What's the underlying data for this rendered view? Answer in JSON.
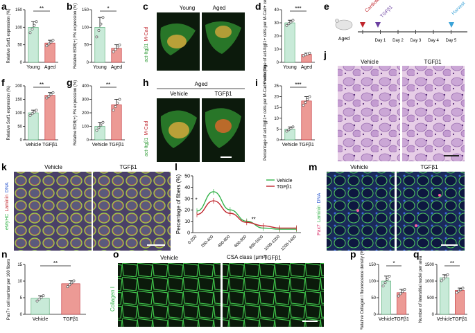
{
  "panel_letters": [
    "a",
    "b",
    "c",
    "d",
    "e",
    "f",
    "g",
    "h",
    "i",
    "j",
    "k",
    "l",
    "m",
    "n",
    "o",
    "p",
    "q"
  ],
  "colors": {
    "young": "#c8ead8",
    "aged": "#ec9a95",
    "vehicle": "#c8ead8",
    "tgfb1": "#ec9a95",
    "green": "#34b34a",
    "red": "#c0262d"
  },
  "micro": {
    "young": "Young",
    "aged": "Aged",
    "vehicle": "Vehicle",
    "tgfb1": "TGFβ1",
    "c_stain_green": "act-Itgβ1",
    "c_stain_red": "M-Cad",
    "k_stain": [
      "eMyHC",
      "Laminin",
      "DNA"
    ],
    "m_stain": [
      "Pax7",
      "Laminin",
      "DNA"
    ],
    "o_stain": "Collagen I"
  },
  "timeline": {
    "aged_label": "Aged",
    "events": [
      "Cardiotoxin",
      "TGFβ1",
      "Harvest"
    ],
    "days": [
      "Day 1",
      "Day 2",
      "Day 3",
      "Day 4",
      "Day 5"
    ]
  },
  "chart_data": [
    {
      "panel": "a",
      "type": "bar",
      "categories": [
        "Young",
        "Aged"
      ],
      "values": [
        100,
        55
      ],
      "errors": [
        16,
        8
      ],
      "ylabel": "Relative Ssrf1 expression (%)",
      "ylim": [
        0,
        150
      ],
      "yticks": [
        0,
        50,
        100,
        150
      ],
      "sig": "**"
    },
    {
      "panel": "b",
      "type": "bar",
      "categories": [
        "Young",
        "Aged"
      ],
      "values": [
        100,
        40
      ],
      "errors": [
        28,
        10
      ],
      "ylabel": "Relative EDB(+) FN expression (%)",
      "ylim": [
        0,
        150
      ],
      "yticks": [
        0,
        50,
        100,
        150
      ],
      "sig": "*"
    },
    {
      "panel": "d",
      "type": "bar",
      "categories": [
        "Young",
        "Aged"
      ],
      "values": [
        30,
        6
      ],
      "errors": [
        2,
        1
      ],
      "ylabel": "Percentage of act-Itgβ1+ cells per M-Cad+ cells (%)",
      "ylim": [
        0,
        40
      ],
      "yticks": [
        0,
        10,
        20,
        30,
        40
      ],
      "sig": "***"
    },
    {
      "panel": "f",
      "type": "bar",
      "categories": [
        "Vehicle",
        "TGFβ1"
      ],
      "values": [
        100,
        165
      ],
      "errors": [
        10,
        10
      ],
      "ylabel": "Relative Ssrf1 expression (%)",
      "ylim": [
        0,
        200
      ],
      "yticks": [
        0,
        50,
        100,
        150,
        200
      ],
      "sig": "**"
    },
    {
      "panel": "g",
      "type": "bar",
      "categories": [
        "Vehicle",
        "TGFβ1"
      ],
      "values": [
        100,
        260
      ],
      "errors": [
        30,
        40
      ],
      "ylabel": "Relative EDB(+) FN expression (%)",
      "ylim": [
        0,
        400
      ],
      "yticks": [
        0,
        100,
        200,
        300,
        400
      ],
      "sig": "**"
    },
    {
      "panel": "i",
      "type": "bar",
      "categories": [
        "Vehicle",
        "TGFβ1"
      ],
      "values": [
        5,
        18
      ],
      "errors": [
        1,
        2
      ],
      "ylabel": "Percentage of act-Itgβ1+ cells per M-Cad+ cells (%)",
      "ylim": [
        0,
        25
      ],
      "yticks": [
        0,
        5,
        10,
        15,
        20,
        25
      ],
      "sig": "***"
    },
    {
      "panel": "l",
      "type": "line",
      "categories": [
        "0-200",
        "200-400",
        "400-600",
        "600-800",
        "800-1000",
        "1000-1200",
        "1200-1400"
      ],
      "series": [
        {
          "name": "Vehicle",
          "values": [
            19,
            36,
            20,
            10,
            4,
            3,
            3
          ]
        },
        {
          "name": "TGFβ1",
          "values": [
            16,
            28,
            17,
            9,
            6,
            4,
            4
          ]
        }
      ],
      "xlabel": "CSA class (μm²)",
      "ylabel": "Percentage of fibers (%)",
      "ylim": [
        0,
        50
      ],
      "yticks": [
        0,
        10,
        20,
        30,
        40,
        50
      ],
      "annotations": [
        "*",
        "**"
      ]
    },
    {
      "panel": "n",
      "type": "bar",
      "categories": [
        "Vehicle",
        "TGFβ1"
      ],
      "values": [
        4.8,
        9.2
      ],
      "errors": [
        0.8,
        0.9
      ],
      "ylabel": "Pax7+ cell number per 100 fibers",
      "ylim": [
        0,
        15
      ],
      "yticks": [
        0,
        5,
        10,
        15
      ],
      "sig": "**"
    },
    {
      "panel": "p",
      "type": "bar",
      "categories": [
        "Vehicle",
        "TGFβ1"
      ],
      "values": [
        100,
        65
      ],
      "errors": [
        15,
        10
      ],
      "ylabel": "Relative Collagen I fluorescence density (%)",
      "ylim": [
        0,
        150
      ],
      "yticks": [
        0,
        50,
        100,
        150
      ],
      "sig": "*"
    },
    {
      "panel": "q",
      "type": "bar",
      "categories": [
        "Vehicle",
        "TGFβ1"
      ],
      "values": [
        1100,
        720
      ],
      "errors": [
        90,
        70
      ],
      "ylabel": "Number of interstitial nuclei per area",
      "ylim": [
        0,
        1500
      ],
      "yticks": [
        0,
        500,
        1000,
        1500
      ],
      "sig": "**"
    }
  ]
}
